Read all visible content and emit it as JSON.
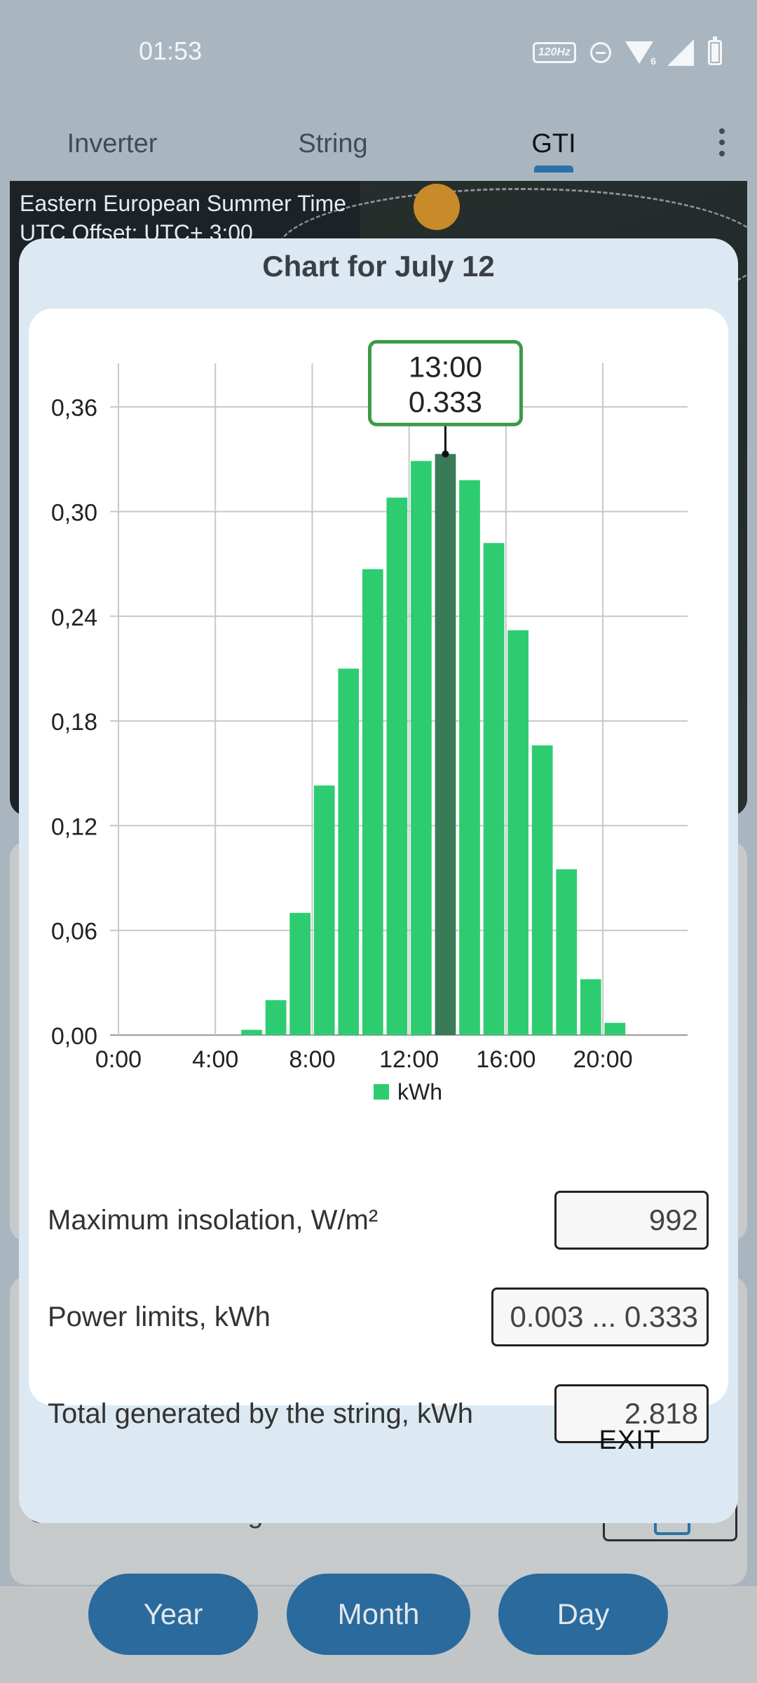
{
  "status_bar": {
    "time": "01:53",
    "refresh_badge": "120Hz",
    "wifi_badge": "6"
  },
  "tabs": [
    {
      "label": "Inverter",
      "active": false
    },
    {
      "label": "String",
      "active": false
    },
    {
      "label": "GTI",
      "active": true
    }
  ],
  "background": {
    "timezone_name": "Eastern European Summer Time",
    "utc_offset": "UTC Offset: UTC+ 3:00",
    "charts_all_label": "Charts for all strings"
  },
  "bottom_nav": {
    "year": "Year",
    "month": "Month",
    "day": "Day"
  },
  "dialog": {
    "title": "Chart for July 12",
    "fields": {
      "max_insolation_label": "Maximum insolation, W/m²",
      "max_insolation_value": "992",
      "power_limits_label": "Power limits, kWh",
      "power_limits_value": "0.003 ... 0.333",
      "total_generated_label": "Total generated by the string, kWh",
      "total_generated_value": "2.818"
    },
    "exit_label": "EXIT"
  },
  "colors": {
    "bar": "#2ecc71",
    "bar_highlight": "#3a7a58",
    "tooltip_border": "#3c9a48",
    "accent": "#2a72a8"
  },
  "chart_data": {
    "type": "bar",
    "x": [
      0,
      1,
      2,
      3,
      4,
      5,
      6,
      7,
      8,
      9,
      10,
      11,
      12,
      13,
      14,
      15,
      16,
      17,
      18,
      19,
      20,
      21,
      22,
      23
    ],
    "values": [
      0,
      0,
      0,
      0,
      0,
      0.003,
      0.02,
      0.07,
      0.143,
      0.21,
      0.267,
      0.308,
      0.329,
      0.333,
      0.318,
      0.282,
      0.232,
      0.166,
      0.095,
      0.032,
      0.007,
      0,
      0,
      0
    ],
    "xticks": [
      0,
      4,
      8,
      12,
      16,
      20
    ],
    "xtick_labels": [
      "0:00",
      "4:00",
      "8:00",
      "12:00",
      "16:00",
      "20:00"
    ],
    "yticks": [
      0,
      0.06,
      0.12,
      0.18,
      0.24,
      0.3,
      0.36
    ],
    "ytick_labels": [
      "0,00",
      "0,06",
      "0,12",
      "0,18",
      "0,24",
      "0,30",
      "0,36"
    ],
    "xlim": [
      0,
      23.5
    ],
    "ylim": [
      0,
      0.385
    ],
    "legend": [
      "kWh"
    ],
    "legend_position": "bottom",
    "grid": true,
    "highlight": {
      "x": 13,
      "label_time": "13:00",
      "label_value": "0.333"
    }
  }
}
